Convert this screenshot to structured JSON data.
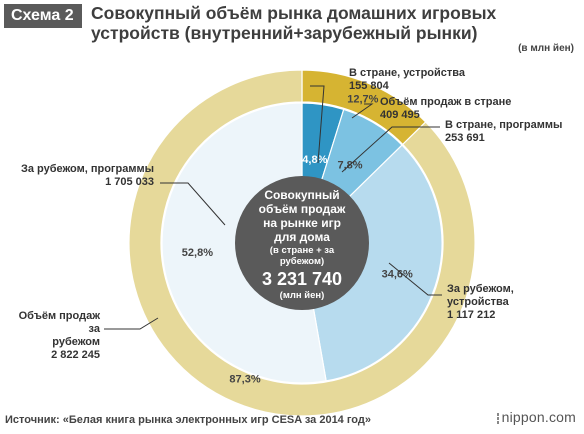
{
  "header": {
    "badge": "Схема 2",
    "title": "Совокупный объём рынка домашних игровых устройств (внутренний+зарубежный рынки)",
    "unit": "(в млн йен)"
  },
  "center": {
    "line1": "Совокупный",
    "line2": "объём продаж",
    "line3": "на рынке игр",
    "line4": "для дома",
    "line5": "(в стране + за",
    "line6": "рубежом)",
    "total": "3 231 740",
    "unit": "(млн йен)"
  },
  "chart_data": {
    "type": "pie",
    "outer_ring": [
      {
        "name": "Объём продаж в стране",
        "value": 409495,
        "percent_label": "12,7%",
        "color": "#d6b432"
      },
      {
        "name": "Объём продаж за рубежом",
        "value": 2822245,
        "percent_label": "87,3%",
        "color": "#e6d99a"
      }
    ],
    "inner_ring": [
      {
        "name": "В стране, устройства",
        "value": 155804,
        "percent_label": "4,8%",
        "color": "#2f95c4"
      },
      {
        "name": "В стране, программы",
        "value": 253691,
        "percent_label": "7,8%",
        "color": "#7cc2e2"
      },
      {
        "name": "За рубежом, устройства",
        "value": 1117212,
        "percent_label": "34,6%",
        "color": "#b7dbee"
      },
      {
        "name": "За рубежом, программы",
        "value": 1705033,
        "percent_label": "52,8%",
        "color": "#edf5fa"
      }
    ],
    "total": 3231740
  },
  "labels": {
    "dom_dev_name": "В стране, устройства",
    "dom_dev_value": "155 804",
    "dom_total_name": "Объём продаж в стране",
    "dom_total_value": "409 495",
    "dom_soft_name": "В стране, программы",
    "dom_soft_value": "253 691",
    "for_soft_name": "За рубежом, программы",
    "for_soft_value": "1 705 033",
    "for_dev_name1": "За рубежом,",
    "for_dev_name2": "устройства",
    "for_dev_value": "1 117 212",
    "for_total_name1": "Объём продаж за",
    "for_total_name2": "рубежом",
    "for_total_value": "2 822 245"
  },
  "footer": {
    "source": "Источник: «Белая книга рынка электронных игр CESA за 2014 год»",
    "brand": "nippon.com"
  }
}
